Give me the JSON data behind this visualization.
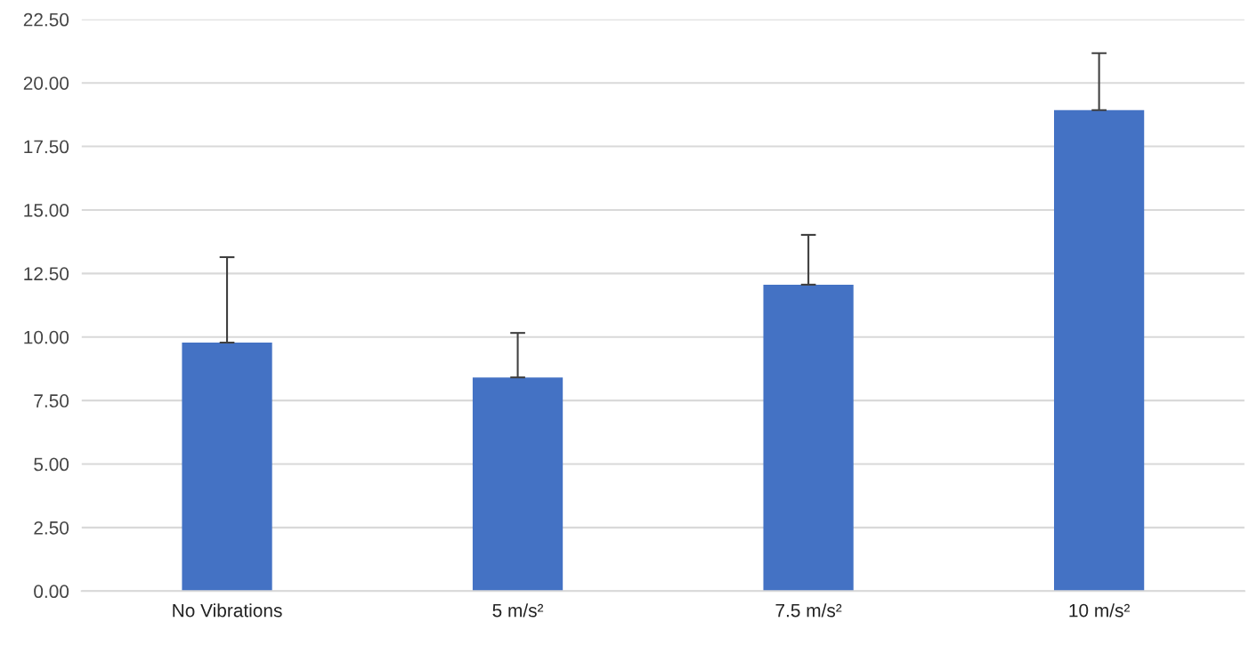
{
  "chart_data": {
    "type": "bar",
    "categories": [
      "No Vibrations",
      "5 m/s²",
      "7.5 m/s²",
      "10 m/s²"
    ],
    "values": [
      9.78,
      8.41,
      12.06,
      18.93
    ],
    "errors": [
      [
        9.78,
        13.14
      ],
      [
        8.41,
        10.16
      ],
      [
        12.06,
        14.02
      ],
      [
        18.93,
        21.17
      ]
    ],
    "color": "#4472c4",
    "ylim": [
      0,
      22.5
    ],
    "yticks": [
      {
        "value": 0,
        "label": "0.00"
      },
      {
        "value": 2.5,
        "label": "2.50"
      },
      {
        "value": 5,
        "label": "5.00"
      },
      {
        "value": 7.5,
        "label": "7.50"
      },
      {
        "value": 10,
        "label": "10.00"
      },
      {
        "value": 12.5,
        "label": "12.50"
      },
      {
        "value": 15,
        "label": "15.00"
      },
      {
        "value": 17.5,
        "label": "17.50"
      },
      {
        "value": 20,
        "label": "20.00"
      },
      {
        "value": 22.5,
        "label": "22.50"
      }
    ],
    "grid": "y"
  }
}
